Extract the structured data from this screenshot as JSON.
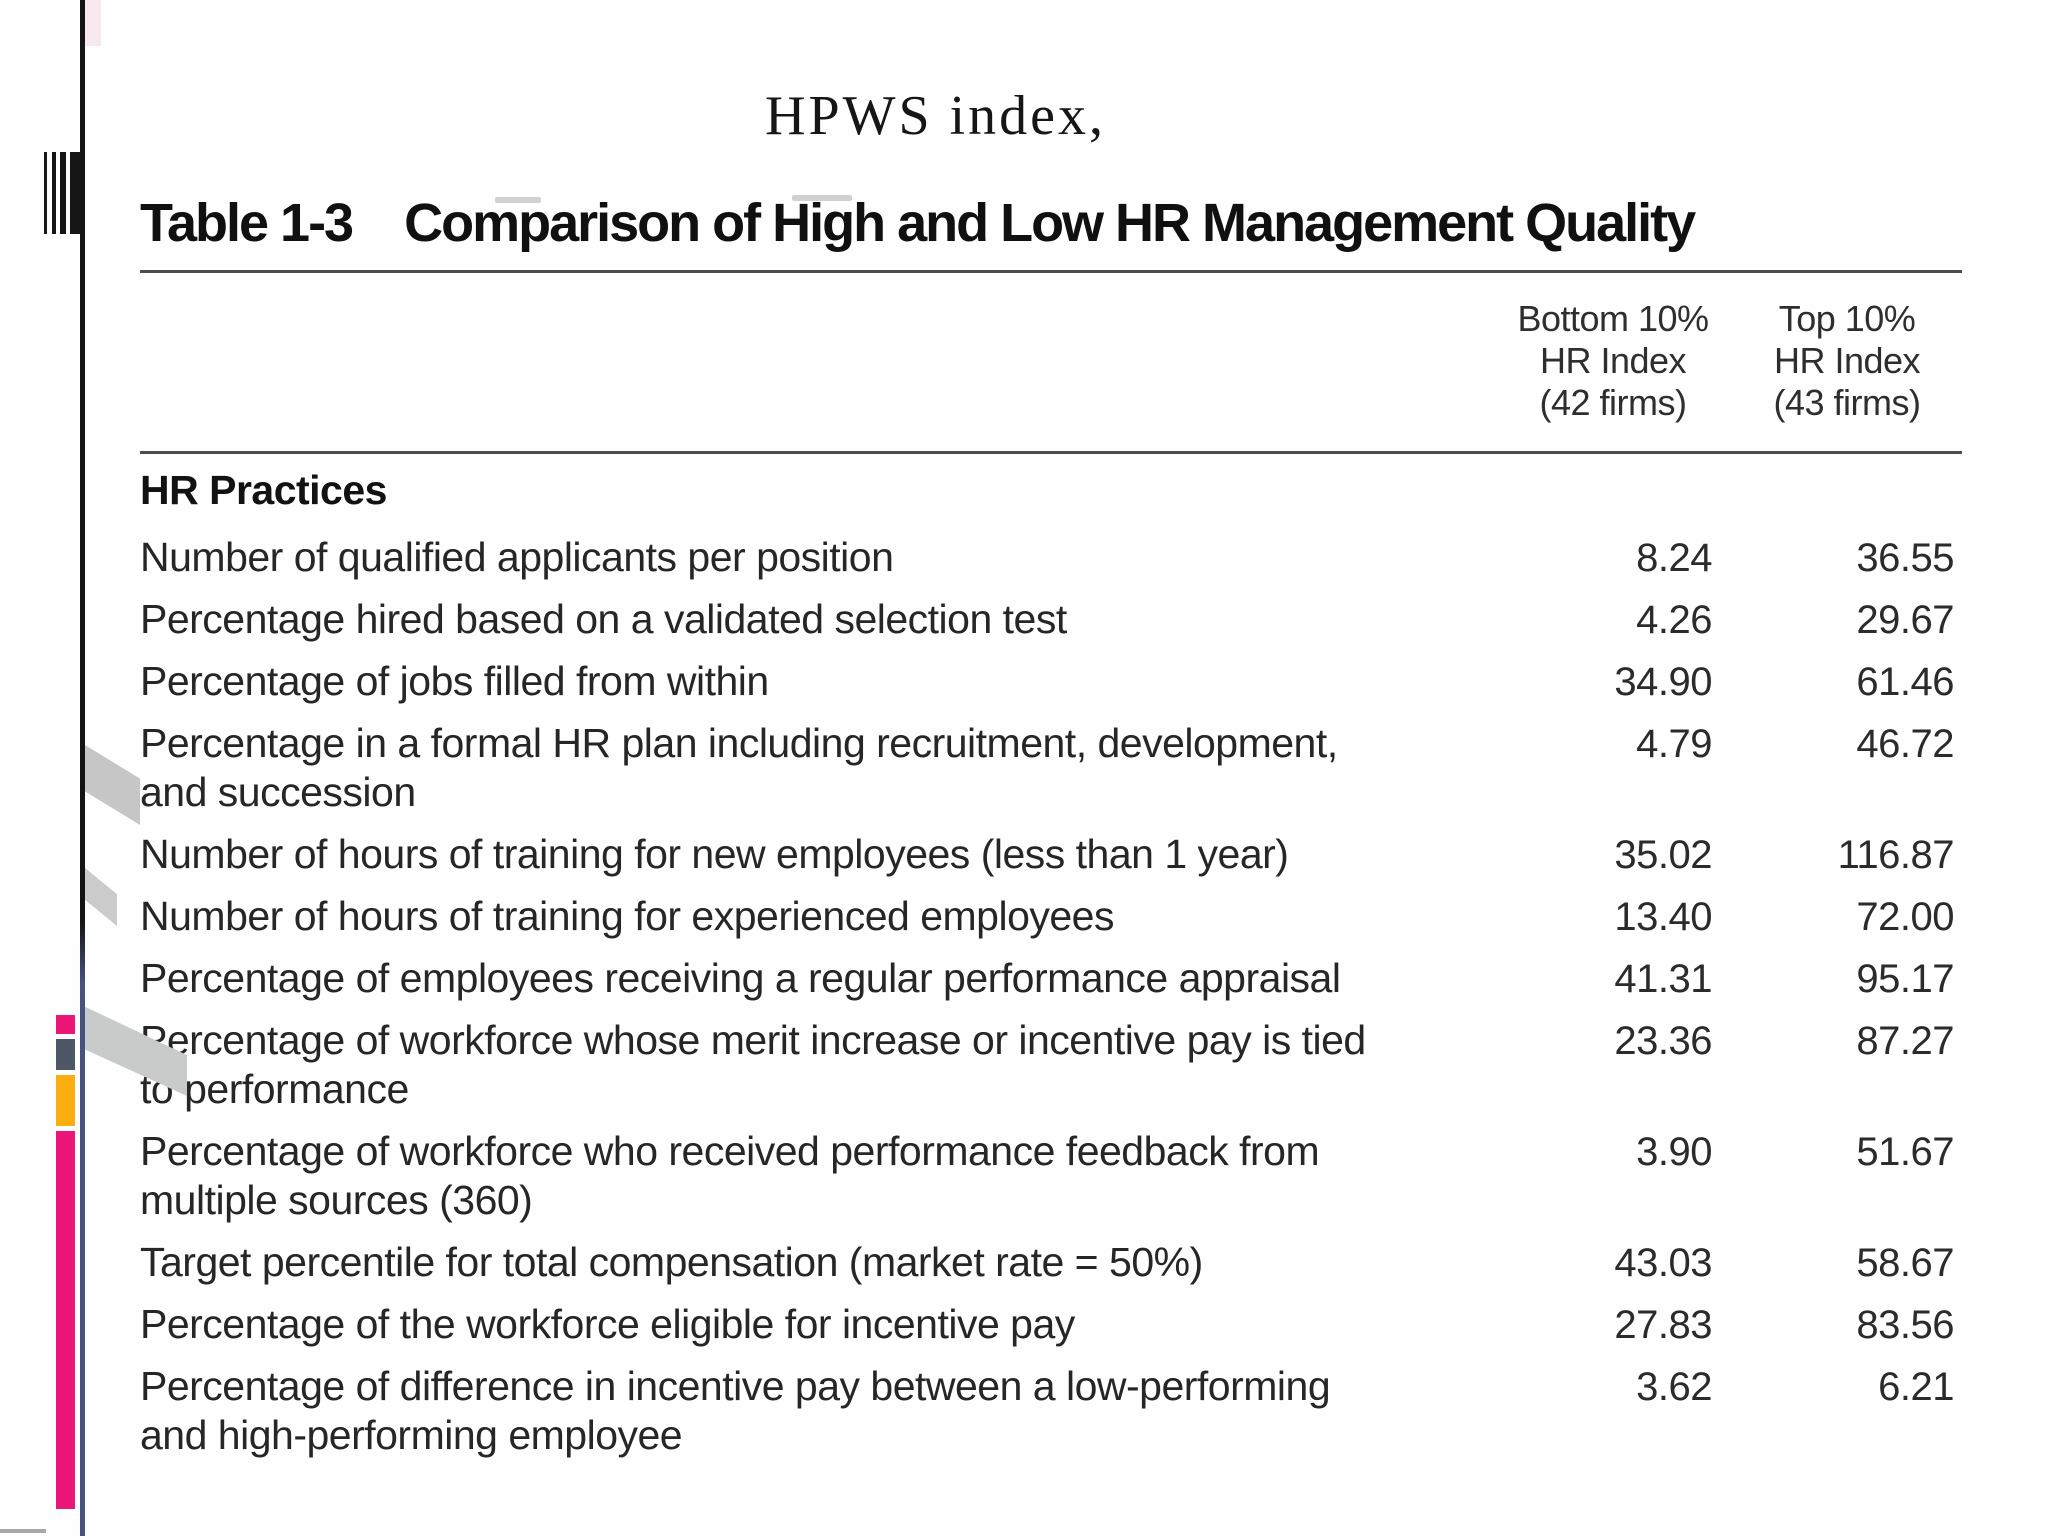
{
  "colors": {
    "accent_magenta": "#EC1578",
    "slate": "#4D5768",
    "amber": "#FBAE10",
    "line_black": "#141414",
    "line_blue_bottom": "#46537E",
    "decor_gray": "#c6c6c6"
  },
  "heading": {
    "serif_title": "HPWS index,"
  },
  "table_heading": {
    "label": "Table 1-3",
    "title": "Comparison of High and Low HR Management Quality"
  },
  "table": {
    "col_headers": [
      [
        "Bottom 10%",
        "HR Index",
        "(42 firms)"
      ],
      [
        "Top 10%",
        "HR Index",
        "(43 firms)"
      ]
    ],
    "section": "HR Practices",
    "rows": [
      {
        "label_lines": [
          "Number of qualified applicants per position"
        ],
        "bottom10": "8.24",
        "top10": "36.55"
      },
      {
        "label_lines": [
          "Percentage hired based on a validated selection test"
        ],
        "bottom10": "4.26",
        "top10": "29.67"
      },
      {
        "label_lines": [
          "Percentage of jobs filled from within"
        ],
        "bottom10": "34.90",
        "top10": "61.46"
      },
      {
        "label_lines": [
          "Percentage in a formal HR plan including recruitment, development,",
          "and succession"
        ],
        "bottom10": "4.79",
        "top10": "46.72"
      },
      {
        "label_lines": [
          "Number of hours of training for new employees (less than 1 year)"
        ],
        "bottom10": "35.02",
        "top10": "116.87"
      },
      {
        "label_lines": [
          "Number of hours of training for experienced employees"
        ],
        "bottom10": "13.40",
        "top10": "72.00"
      },
      {
        "label_lines": [
          "Percentage of employees receiving a regular performance appraisal"
        ],
        "bottom10": "41.31",
        "top10": "95.17"
      },
      {
        "label_lines": [
          "Percentage of workforce whose merit increase or incentive pay is tied",
          "to performance"
        ],
        "bottom10": "23.36",
        "top10": "87.27"
      },
      {
        "label_lines": [
          "Percentage of workforce who received performance feedback from",
          "multiple sources (360)"
        ],
        "bottom10": "3.90",
        "top10": "51.67"
      },
      {
        "label_lines": [
          "Target percentile for total compensation (market rate = 50%)"
        ],
        "bottom10": "43.03",
        "top10": "58.67"
      },
      {
        "label_lines": [
          "Percentage of the workforce eligible for incentive pay"
        ],
        "bottom10": "27.83",
        "top10": "83.56"
      },
      {
        "label_lines": [
          "Percentage of difference in incentive pay between a low-performing",
          "and high-performing employee"
        ],
        "bottom10": "3.62",
        "top10": "6.21"
      }
    ]
  }
}
